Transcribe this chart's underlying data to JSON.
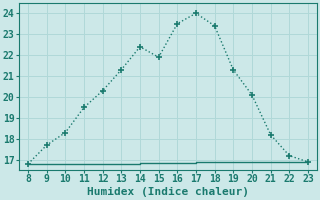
{
  "x": [
    8,
    9,
    10,
    11,
    12,
    13,
    14,
    15,
    16,
    17,
    18,
    19,
    20,
    21,
    22,
    23
  ],
  "y_curve": [
    16.8,
    17.7,
    18.3,
    19.5,
    20.3,
    21.3,
    22.4,
    21.9,
    23.5,
    24.0,
    23.4,
    21.3,
    20.1,
    18.2,
    17.2,
    16.9
  ],
  "x_flat": [
    8,
    9,
    10,
    11,
    12,
    13,
    14,
    15,
    16,
    17,
    18,
    19,
    20,
    21,
    22,
    23
  ],
  "y_flat": [
    16.8,
    16.8,
    16.8,
    16.8,
    16.8,
    16.8,
    16.85,
    16.85,
    16.85,
    16.9,
    16.9,
    16.9,
    16.9,
    16.9,
    16.9,
    16.9
  ],
  "line_color": "#1a7a6e",
  "marker": "+",
  "marker_size": 5,
  "bg_color": "#cce8e8",
  "grid_color": "#b0d8d8",
  "xlabel": "Humidex (Indice chaleur)",
  "xlim": [
    7.5,
    23.5
  ],
  "ylim": [
    16.5,
    24.5
  ],
  "xticks": [
    8,
    9,
    10,
    11,
    12,
    13,
    14,
    15,
    16,
    17,
    18,
    19,
    20,
    21,
    22,
    23
  ],
  "yticks": [
    17,
    18,
    19,
    20,
    21,
    22,
    23,
    24
  ],
  "xlabel_fontsize": 8,
  "tick_fontsize": 7,
  "line_width": 1.0
}
